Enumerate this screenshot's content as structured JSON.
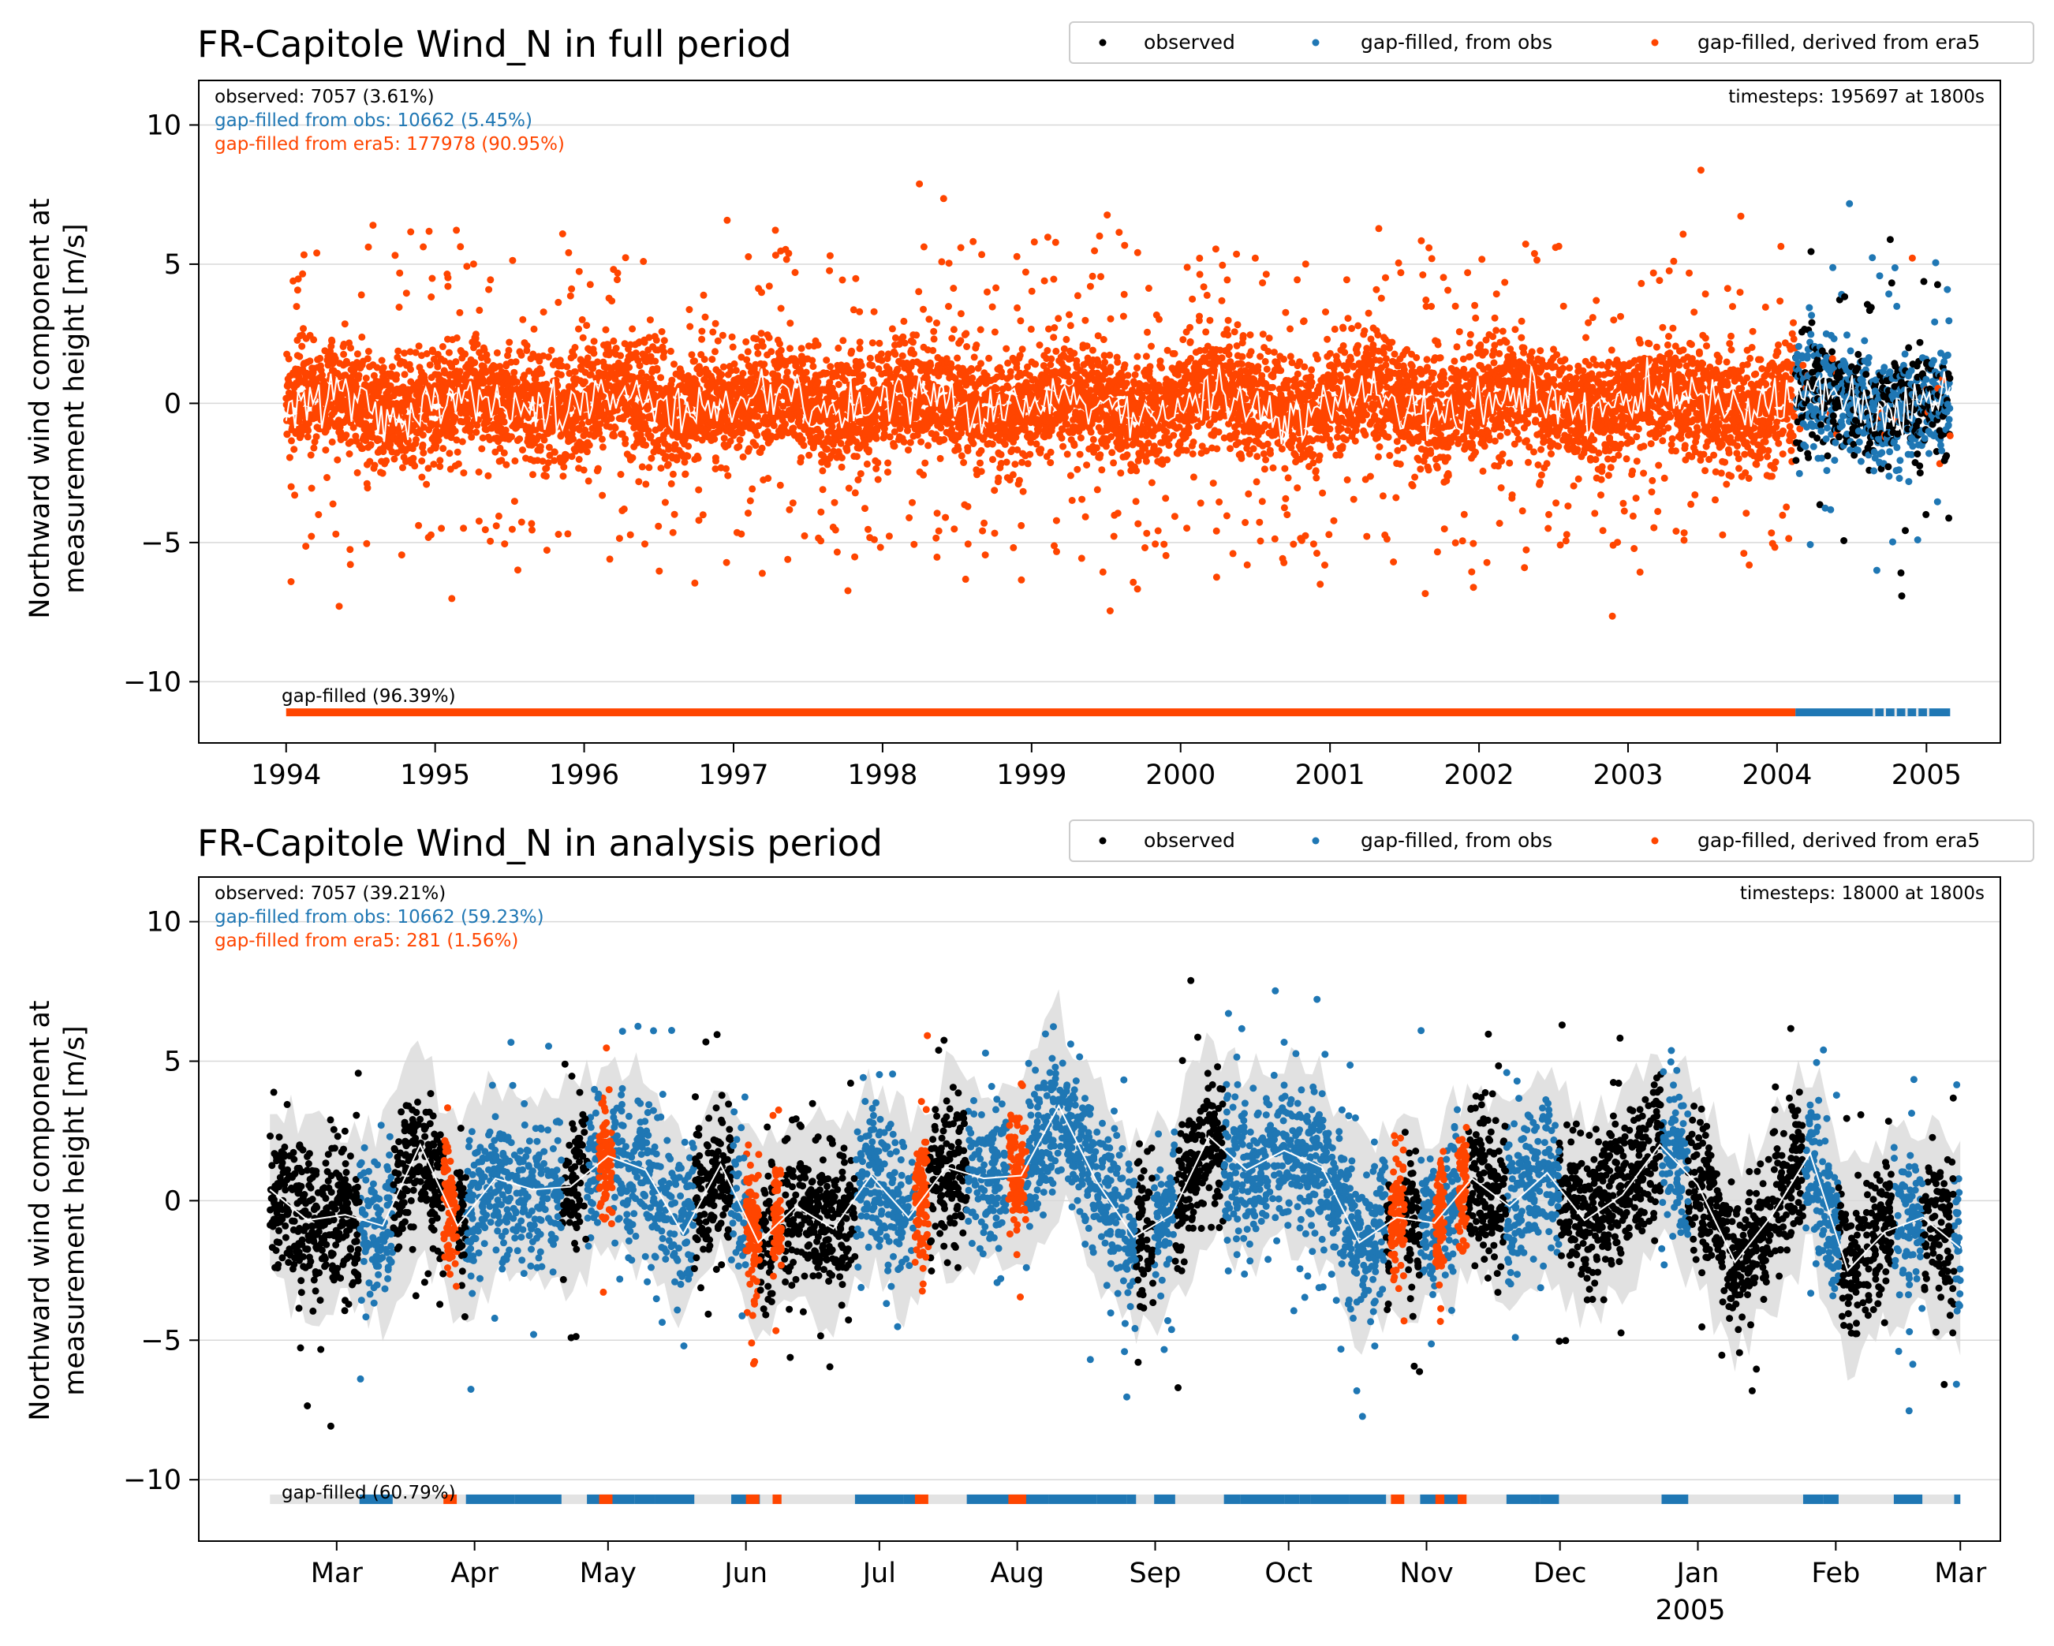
{
  "chart_data": [
    {
      "type": "scatter",
      "title": "FR-Capitole Wind_N in full period",
      "ylabel_line1": "Northward wind component at",
      "ylabel_line2": "measurement height [m/s]",
      "xlim": [
        "1993-06-01",
        "2005-07-01"
      ],
      "ylim": [
        -12.2,
        11.6
      ],
      "yticks": [
        10,
        5,
        0,
        -5,
        -10
      ],
      "ytick_labels": [
        "10",
        "5",
        "0",
        "−5",
        "−10"
      ],
      "xticks": [
        {
          "date": "1994-01-01",
          "label": "1994"
        },
        {
          "date": "1995-01-01",
          "label": "1995"
        },
        {
          "date": "1996-01-01",
          "label": "1996"
        },
        {
          "date": "1997-01-01",
          "label": "1997"
        },
        {
          "date": "1998-01-01",
          "label": "1998"
        },
        {
          "date": "1999-01-01",
          "label": "1999"
        },
        {
          "date": "2000-01-01",
          "label": "2000"
        },
        {
          "date": "2001-01-01",
          "label": "2001"
        },
        {
          "date": "2002-01-01",
          "label": "2002"
        },
        {
          "date": "2003-01-01",
          "label": "2003"
        },
        {
          "date": "2004-01-01",
          "label": "2004"
        },
        {
          "date": "2005-01-01",
          "label": "2005"
        }
      ],
      "data_range": [
        "1994-01-01",
        "2005-02-28"
      ],
      "segments": [
        {
          "series": "gap-filled, derived from era5",
          "start": "1994-01-01",
          "end": "2004-02-15"
        },
        {
          "series": "mixed",
          "start": "2004-02-15",
          "end": "2005-02-28"
        }
      ],
      "annotations": {
        "observed": "observed: 7057 (3.61%)",
        "from_obs": "gap-filled from obs: 10662 (5.45%)",
        "from_era5": "gap-filled from era5: 177978 (90.95%)",
        "timesteps": "timesteps: 195697 at 1800s",
        "gap_filled": "gap-filled (96.39%)"
      },
      "gap_bar_y": -11.1,
      "grid": "horizontal",
      "legend": "top-right"
    },
    {
      "type": "scatter",
      "title": "FR-Capitole Wind_N in analysis period",
      "ylabel_line1": "Northward wind component at",
      "ylabel_line2": "measurement height [m/s]",
      "xlim": [
        "2004-01-30",
        "2005-03-10"
      ],
      "ylim": [
        -12.2,
        11.6
      ],
      "yticks": [
        10,
        5,
        0,
        -5,
        -10
      ],
      "ytick_labels": [
        "10",
        "5",
        "0",
        "−5",
        "−10"
      ],
      "xticks": [
        {
          "date": "2004-03-01",
          "label": "Mar"
        },
        {
          "date": "2004-04-01",
          "label": "Apr"
        },
        {
          "date": "2004-05-01",
          "label": "May"
        },
        {
          "date": "2004-06-01",
          "label": "Jun"
        },
        {
          "date": "2004-07-01",
          "label": "Jul"
        },
        {
          "date": "2004-08-01",
          "label": "Aug"
        },
        {
          "date": "2004-09-01",
          "label": "Sep"
        },
        {
          "date": "2004-10-01",
          "label": "Oct"
        },
        {
          "date": "2004-11-01",
          "label": "Nov"
        },
        {
          "date": "2004-12-01",
          "label": "Dec"
        },
        {
          "date": "2005-01-01",
          "label": "Jan"
        },
        {
          "date": "2005-02-01",
          "label": "Feb"
        },
        {
          "date": "2005-03-01",
          "label": "Mar"
        }
      ],
      "xtick_sublabel": "2005",
      "data_range": [
        "2004-02-15",
        "2005-03-01"
      ],
      "era5_segments": [
        [
          "2004-03-25",
          "2004-03-28"
        ],
        [
          "2004-04-29",
          "2004-05-02"
        ],
        [
          "2004-06-01",
          "2004-06-04"
        ],
        [
          "2004-06-07",
          "2004-06-09"
        ],
        [
          "2004-07-09",
          "2004-07-12"
        ],
        [
          "2004-07-30",
          "2004-08-03"
        ],
        [
          "2004-10-24",
          "2004-10-27"
        ],
        [
          "2004-11-03",
          "2004-11-05"
        ],
        [
          "2004-11-08",
          "2004-11-10"
        ]
      ],
      "monthly_mean": [
        0.4,
        -0.7,
        -0.5,
        -0.9,
        2.0,
        -0.9,
        0.8,
        0.4,
        0.5,
        1.6,
        1.1,
        -1.2,
        1.3,
        -1.5,
        -0.2,
        -1.0,
        0.9,
        -0.6,
        1.2,
        0.8,
        0.9,
        3.4,
        0.7,
        -1.3,
        -0.5,
        2.3,
        1.1,
        1.8,
        1.2,
        -1.5,
        -0.6,
        -0.8,
        0.8,
        -0.2,
        1.0,
        -0.7,
        0.2,
        2.0,
        0.6,
        -2.2,
        -0.5,
        1.7,
        -2.5,
        -1.1,
        -0.6,
        -1.7
      ],
      "annotations": {
        "observed": "observed: 7057 (39.21%)",
        "from_obs": "gap-filled from obs: 10662 (59.23%)",
        "from_era5": "gap-filled from era5: 281 (1.56%)",
        "timesteps": "timesteps: 18000 at 1800s",
        "gap_filled": "gap-filled (60.79%)"
      },
      "gap_bar_y": -10.7,
      "grid": "horizontal",
      "legend": "top-right"
    }
  ],
  "legend": {
    "items": [
      {
        "label": "observed",
        "color": "#000000"
      },
      {
        "label": "gap-filled, from obs",
        "color": "#1f77b4"
      },
      {
        "label": "gap-filled, derived from era5",
        "color": "#ff4500"
      }
    ]
  },
  "colors": {
    "observed": "#000000",
    "from_obs": "#1f77b4",
    "era5": "#ff4500",
    "mean_line": "#ffffff",
    "band": "#d9d9d9"
  }
}
